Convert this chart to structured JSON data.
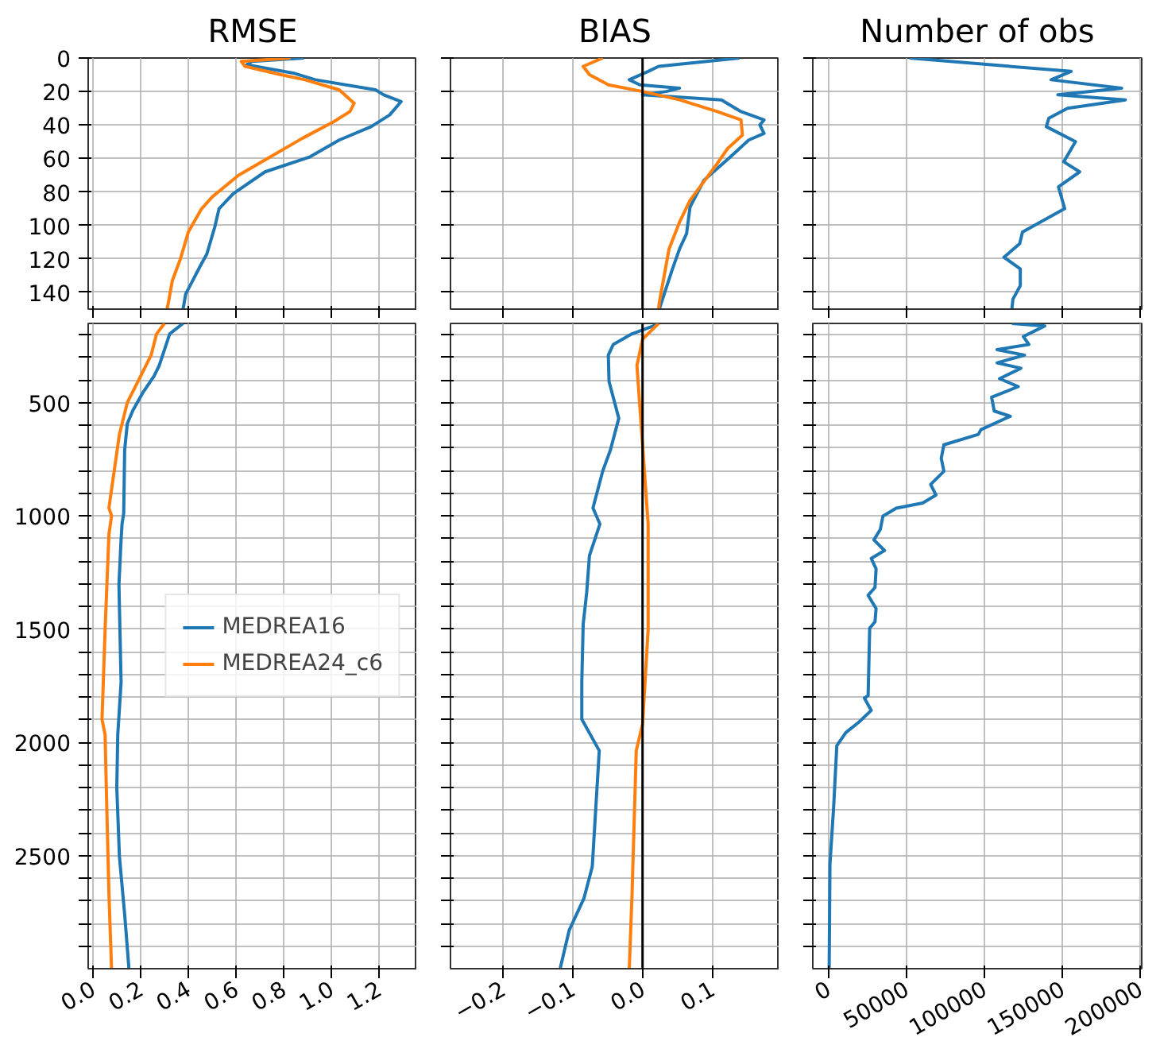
{
  "chart_data": [
    {
      "type": "line",
      "title": "RMSE",
      "xlim": [
        -0.02,
        1.36
      ],
      "ylim": [
        150,
        0
      ],
      "xticks": [
        0,
        0.2,
        0.4,
        0.6,
        0.8,
        1,
        1.2
      ],
      "yticks": [
        0,
        20,
        40,
        60,
        80,
        100,
        120,
        140
      ],
      "grid": true,
      "tick_labels": "y",
      "series": [
        {
          "color": "#1f77b4",
          "x": [
            0.885,
            0.667,
            0.645,
            0.84,
            0.933,
            1.185,
            1.22,
            1.293,
            1.245,
            1.167,
            1.033,
            0.911,
            0.722,
            0.589,
            0.529,
            0.511,
            0.478,
            0.451,
            0.411,
            0.389,
            0.378
          ],
          "values": [
            0,
            2,
            4,
            9,
            13,
            19,
            22,
            26,
            34,
            41,
            49,
            59,
            68,
            81,
            90,
            101,
            117,
            124,
            135,
            141,
            150
          ]
        },
        {
          "color": "#ff7f0e",
          "x": [
            0.829,
            0.622,
            0.638,
            0.789,
            0.889,
            1.033,
            1.056,
            1.096,
            1.078,
            1.011,
            0.878,
            0.745,
            0.611,
            0.5,
            0.456,
            0.4,
            0.367,
            0.333,
            0.318,
            0.311
          ],
          "values": [
            0,
            2,
            5,
            10,
            13,
            19,
            22,
            27,
            32,
            38,
            48,
            59,
            70,
            83,
            90,
            104,
            120,
            133,
            145,
            150
          ]
        }
      ]
    },
    {
      "type": "line",
      "title": "BIAS",
      "xlim": [
        -0.275,
        0.196
      ],
      "ylim": [
        150,
        0
      ],
      "xticks": [
        -0.2,
        -0.1,
        0,
        0.1
      ],
      "yticks": [
        0,
        20,
        40,
        60,
        80,
        100,
        120,
        140
      ],
      "grid": true,
      "tick_labels": false,
      "ref_lines": [
        {
          "axis": "x",
          "value": 0,
          "color": "#000000"
        }
      ],
      "series": [
        {
          "color": "#1f77b4",
          "x": [
            0.139,
            0.023,
            0.008,
            -0.019,
            -0.004,
            0.053,
            0.034,
            0.0,
            0.113,
            0.141,
            0.174,
            0.168,
            0.174,
            0.152,
            0.126,
            0.088,
            0.068,
            0.063,
            0.053,
            0.042,
            0.031,
            0.024
          ],
          "values": [
            0,
            5,
            8,
            13,
            16,
            18,
            20,
            22,
            25,
            32,
            37,
            40,
            45,
            49,
            59,
            73,
            89,
            105,
            114,
            127,
            141,
            150
          ]
        },
        {
          "color": "#ff7f0e",
          "x": [
            -0.057,
            -0.085,
            -0.076,
            -0.049,
            0.0,
            0.053,
            0.107,
            0.141,
            0.143,
            0.122,
            0.107,
            0.084,
            0.068,
            0.053,
            0.038,
            0.031,
            0.024,
            0.023
          ],
          "values": [
            0,
            5,
            10,
            16,
            20,
            25,
            32,
            37,
            46,
            54,
            63,
            76,
            85,
            98,
            114,
            130,
            146,
            150
          ]
        }
      ]
    },
    {
      "type": "line",
      "title": "Number of obs",
      "xlim": [
        -10000,
        201000
      ],
      "ylim": [
        150,
        0
      ],
      "xticks": [
        0,
        50000,
        100000,
        150000,
        200000
      ],
      "yticks": [
        0,
        20,
        40,
        60,
        80,
        100,
        120,
        140
      ],
      "grid": true,
      "tick_labels": false,
      "series": [
        {
          "color": "#1f77b4",
          "x": [
            52000,
            155700,
            142900,
            188100,
            147200,
            190500,
            153400,
            141400,
            139800,
            158500,
            151000,
            161200,
            147600,
            151600,
            124500,
            122700,
            112600,
            123100,
            123100,
            118400,
            117700
          ],
          "values": [
            0,
            8,
            13,
            18,
            22,
            25,
            30,
            36,
            41,
            50,
            62,
            68,
            77,
            90,
            104,
            111,
            119,
            126,
            136,
            144,
            150
          ]
        }
      ]
    },
    {
      "type": "line",
      "xlim": [
        -0.02,
        1.36
      ],
      "ylim": [
        3000,
        150
      ],
      "xticks": [
        {
          "value": 0,
          "label": "0.0"
        },
        0.2,
        0.4,
        0.6,
        0.8,
        {
          "value": 1,
          "label": "1.0"
        },
        1.2
      ],
      "yticks": [
        {
          "value": 200,
          "label": null
        },
        {
          "value": 300,
          "label": null
        },
        {
          "value": 400,
          "label": null
        },
        500,
        {
          "value": 600,
          "label": null
        },
        {
          "value": 700,
          "label": null
        },
        {
          "value": 800,
          "label": null
        },
        {
          "value": 900,
          "label": null
        },
        1000,
        {
          "value": 1100,
          "label": null
        },
        {
          "value": 1200,
          "label": null
        },
        {
          "value": 1300,
          "label": null
        },
        {
          "value": 1400,
          "label": null
        },
        1500,
        {
          "value": 1600,
          "label": null
        },
        {
          "value": 1700,
          "label": null
        },
        {
          "value": 1800,
          "label": null
        },
        {
          "value": 1900,
          "label": null
        },
        2000,
        {
          "value": 2100,
          "label": null
        },
        {
          "value": 2200,
          "label": null
        },
        {
          "value": 2300,
          "label": null
        },
        {
          "value": 2400,
          "label": null
        },
        2500,
        {
          "value": 2600,
          "label": null
        },
        {
          "value": 2700,
          "label": null
        },
        {
          "value": 2800,
          "label": null
        },
        {
          "value": 2900,
          "label": null
        }
      ],
      "grid": true,
      "legend": "right",
      "series": [
        {
          "name": "MEDREA16",
          "color": "#1f77b4",
          "x": [
            0.378,
            0.322,
            0.3,
            0.278,
            0.256,
            0.211,
            0.167,
            0.144,
            0.133,
            0.129,
            0.122,
            0.118,
            0.109,
            0.118,
            0.104,
            0.1,
            0.111,
            0.133,
            0.151
          ],
          "values": [
            150,
            196,
            266,
            336,
            383,
            453,
            535,
            593,
            709,
            989,
            1036,
            1105,
            1304,
            1735,
            1968,
            2201,
            2504,
            2760,
            3000
          ]
        },
        {
          "name": "MEDREA24_c6",
          "color": "#ff7f0e",
          "x": [
            0.3,
            0.267,
            0.244,
            0.2,
            0.144,
            0.111,
            0.089,
            0.067,
            0.078,
            0.067,
            0.051,
            0.038,
            0.051,
            0.056,
            0.067,
            0.078
          ],
          "values": [
            150,
            196,
            290,
            383,
            500,
            640,
            802,
            965,
            1000,
            1082,
            1502,
            1898,
            1968,
            2201,
            2667,
            3000
          ]
        }
      ]
    },
    {
      "type": "line",
      "xlim": [
        -0.275,
        0.196
      ],
      "ylim": [
        3000,
        150
      ],
      "xticks": [
        {
          "value": -0.2,
          "label": "−0.2"
        },
        {
          "value": -0.1,
          "label": "−0.1"
        },
        {
          "value": 0,
          "label": "0.0"
        },
        {
          "value": 0.1,
          "label": "0.1"
        }
      ],
      "yticks": [
        {
          "value": 200,
          "label": null
        },
        {
          "value": 300,
          "label": null
        },
        {
          "value": 400,
          "label": null
        },
        {
          "value": 500,
          "label": null
        },
        {
          "value": 600,
          "label": null
        },
        {
          "value": 700,
          "label": null
        },
        {
          "value": 800,
          "label": null
        },
        {
          "value": 900,
          "label": null
        },
        {
          "value": 1000,
          "label": null
        },
        {
          "value": 1100,
          "label": null
        },
        {
          "value": 1200,
          "label": null
        },
        {
          "value": 1300,
          "label": null
        },
        {
          "value": 1400,
          "label": null
        },
        {
          "value": 1500,
          "label": null
        },
        {
          "value": 1600,
          "label": null
        },
        {
          "value": 1700,
          "label": null
        },
        {
          "value": 1800,
          "label": null
        },
        {
          "value": 1900,
          "label": null
        },
        {
          "value": 2000,
          "label": null
        },
        {
          "value": 2100,
          "label": null
        },
        {
          "value": 2200,
          "label": null
        },
        {
          "value": 2300,
          "label": null
        },
        {
          "value": 2400,
          "label": null
        },
        {
          "value": 2500,
          "label": null
        },
        {
          "value": 2600,
          "label": null
        },
        {
          "value": 2700,
          "label": null
        },
        {
          "value": 2800,
          "label": null
        },
        {
          "value": 2900,
          "label": null
        }
      ],
      "grid": true,
      "tick_labels": "x",
      "ref_lines": [
        {
          "axis": "x",
          "value": 0,
          "color": "#000000"
        }
      ],
      "series": [
        {
          "color": "#1f77b4",
          "x": [
            0.023,
            0.015,
            -0.015,
            -0.042,
            -0.049,
            -0.048,
            -0.034,
            -0.046,
            -0.057,
            -0.071,
            -0.061,
            -0.076,
            -0.08,
            -0.085,
            -0.087,
            -0.087,
            -0.062,
            -0.072,
            -0.084,
            -0.105,
            -0.118
          ],
          "values": [
            150,
            162,
            196,
            243,
            290,
            406,
            569,
            709,
            802,
            965,
            1036,
            1175,
            1339,
            1479,
            1735,
            1898,
            2037,
            2550,
            2690,
            2830,
            3000
          ]
        },
        {
          "color": "#ff7f0e",
          "x": [
            0.023,
            0.0,
            -0.008,
            0.0,
            0.008,
            0.008,
            0.0,
            -0.009,
            -0.015,
            -0.019
          ],
          "values": [
            150,
            220,
            336,
            686,
            1036,
            1502,
            1921,
            2037,
            2667,
            3000
          ]
        }
      ]
    },
    {
      "type": "line",
      "xlim": [
        -10000,
        201000
      ],
      "ylim": [
        3000,
        150
      ],
      "xticks": [
        0,
        50000,
        100000,
        150000,
        200000
      ],
      "yticks": [
        {
          "value": 200,
          "label": null
        },
        {
          "value": 300,
          "label": null
        },
        {
          "value": 400,
          "label": null
        },
        {
          "value": 500,
          "label": null
        },
        {
          "value": 600,
          "label": null
        },
        {
          "value": 700,
          "label": null
        },
        {
          "value": 800,
          "label": null
        },
        {
          "value": 900,
          "label": null
        },
        {
          "value": 1000,
          "label": null
        },
        {
          "value": 1100,
          "label": null
        },
        {
          "value": 1200,
          "label": null
        },
        {
          "value": 1300,
          "label": null
        },
        {
          "value": 1400,
          "label": null
        },
        {
          "value": 1500,
          "label": null
        },
        {
          "value": 1600,
          "label": null
        },
        {
          "value": 1700,
          "label": null
        },
        {
          "value": 1800,
          "label": null
        },
        {
          "value": 1900,
          "label": null
        },
        {
          "value": 2000,
          "label": null
        },
        {
          "value": 2100,
          "label": null
        },
        {
          "value": 2200,
          "label": null
        },
        {
          "value": 2300,
          "label": null
        },
        {
          "value": 2400,
          "label": null
        },
        {
          "value": 2500,
          "label": null
        },
        {
          "value": 2600,
          "label": null
        },
        {
          "value": 2700,
          "label": null
        },
        {
          "value": 2800,
          "label": null
        },
        {
          "value": 2900,
          "label": null
        }
      ],
      "grid": true,
      "tick_labels": "x",
      "series": [
        {
          "color": "#1f77b4",
          "x": [
            117700,
            138800,
            125100,
            128600,
            108200,
            125800,
            108200,
            123500,
            109800,
            121800,
            104700,
            106400,
            116700,
            97900,
            96200,
            74100,
            72400,
            74100,
            65600,
            69000,
            60500,
            43500,
            35000,
            33300,
            29200,
            36000,
            27500,
            30600,
            29900,
            25500,
            30600,
            29900,
            26500,
            25500,
            23100,
            27500,
            19700,
            11200,
            5400,
            3400,
            1000,
            500
          ],
          "values": [
            150,
            161,
            208,
            243,
            266,
            290,
            324,
            348,
            394,
            429,
            476,
            537,
            560,
            619,
            640,
            686,
            745,
            803,
            861,
            908,
            943,
            966,
            1001,
            1060,
            1106,
            1153,
            1188,
            1234,
            1316,
            1351,
            1409,
            1468,
            1496,
            1794,
            1805,
            1859,
            1910,
            1957,
            2015,
            2283,
            2540,
            3000
          ]
        }
      ]
    }
  ]
}
